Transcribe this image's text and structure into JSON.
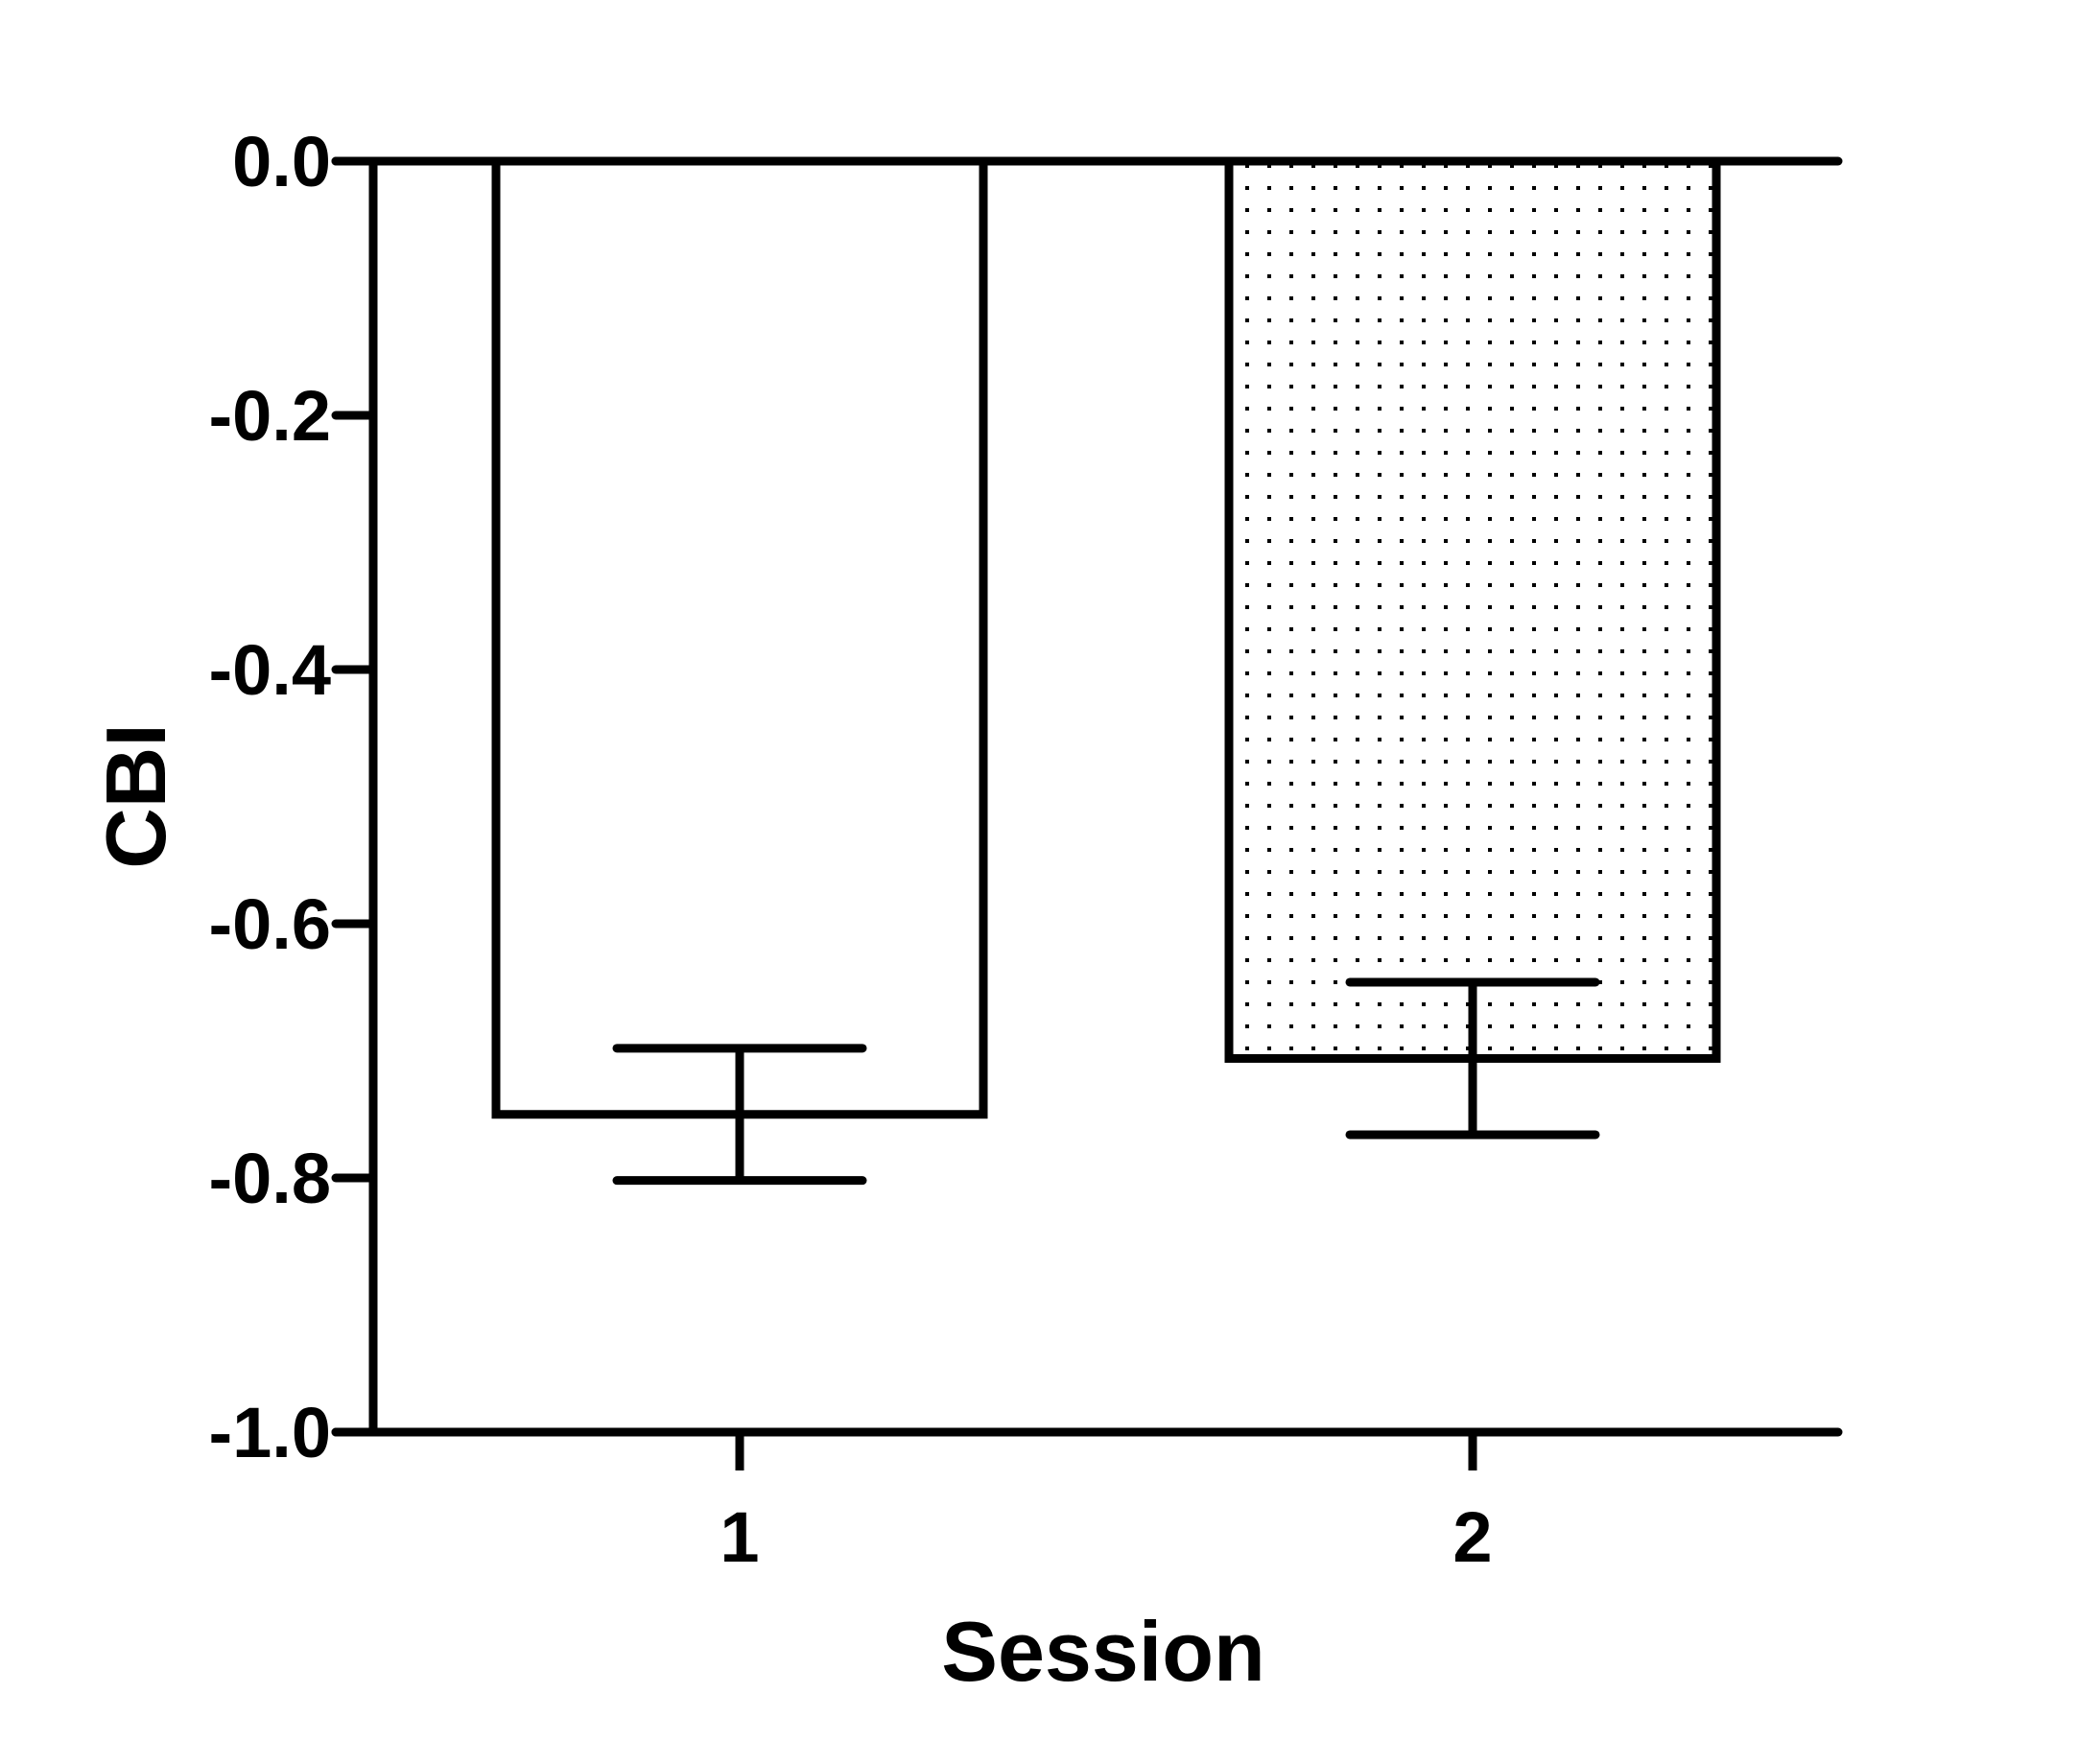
{
  "chart_data": {
    "type": "bar",
    "title": "",
    "xlabel": "Session",
    "ylabel": "CBI",
    "categories": [
      "1",
      "2"
    ],
    "values": [
      -0.75,
      -0.706
    ],
    "error": [
      0.052,
      0.06
    ],
    "ylim": [
      -1.0,
      0.0
    ],
    "yticks": [
      0.0,
      -0.2,
      -0.4,
      -0.6,
      -0.8,
      -1.0
    ],
    "ytick_labels": [
      "0.0",
      "-0.2",
      "-0.4",
      "-0.6",
      "-0.8",
      "-1.0"
    ],
    "bar_fills": [
      "plain",
      "dotted"
    ],
    "grid": false,
    "legend": false,
    "colors": {
      "stroke": "#000000",
      "background": "#ffffff",
      "dots": "#000000"
    }
  }
}
